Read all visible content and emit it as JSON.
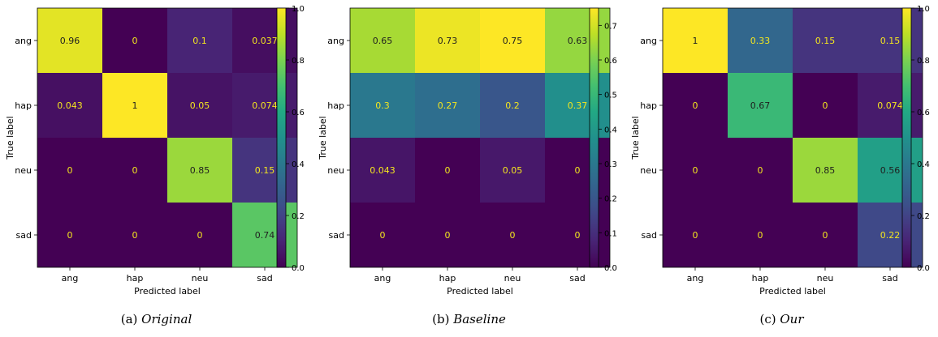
{
  "chart_data": [
    {
      "type": "heatmap",
      "x_categories": [
        "ang",
        "hap",
        "neu",
        "sad"
      ],
      "y_categories": [
        "ang",
        "hap",
        "neu",
        "sad"
      ],
      "values": [
        [
          0.96,
          0,
          0.1,
          0.037
        ],
        [
          0.043,
          1,
          0.05,
          0.074
        ],
        [
          0,
          0,
          0.85,
          0.15
        ],
        [
          0,
          0,
          0,
          0.74
        ]
      ],
      "cell_labels": [
        [
          "0.96",
          "0",
          "0.1",
          "0.037"
        ],
        [
          "0.043",
          "1",
          "0.05",
          "0.074"
        ],
        [
          "0",
          "0",
          "0.85",
          "0.15"
        ],
        [
          "0",
          "0",
          "0",
          "0.74"
        ]
      ],
      "xlabel": "Predicted label",
      "ylabel": "True label",
      "colorbar_range": [
        0,
        1
      ],
      "colorbar_ticks": [
        "0.0",
        "0.2",
        "0.4",
        "0.6",
        "0.8",
        "1.0"
      ],
      "colorbar_tick_values": [
        0,
        0.2,
        0.4,
        0.6,
        0.8,
        1.0
      ],
      "colormap": "viridis",
      "caption_prefix": "(a) ",
      "caption_name": "Original"
    },
    {
      "type": "heatmap",
      "x_categories": [
        "ang",
        "hap",
        "neu",
        "sad"
      ],
      "y_categories": [
        "ang",
        "hap",
        "neu",
        "sad"
      ],
      "values": [
        [
          0.65,
          0.73,
          0.75,
          0.63
        ],
        [
          0.3,
          0.27,
          0.2,
          0.37
        ],
        [
          0.043,
          0,
          0.05,
          0
        ],
        [
          0,
          0,
          0,
          0
        ]
      ],
      "cell_labels": [
        [
          "0.65",
          "0.73",
          "0.75",
          "0.63"
        ],
        [
          "0.3",
          "0.27",
          "0.2",
          "0.37"
        ],
        [
          "0.043",
          "0",
          "0.05",
          "0"
        ],
        [
          "0",
          "0",
          "0",
          "0"
        ]
      ],
      "xlabel": "Predicted label",
      "ylabel": "True label",
      "colorbar_range": [
        0,
        0.75
      ],
      "colorbar_ticks": [
        "0.0",
        "0.1",
        "0.2",
        "0.3",
        "0.4",
        "0.5",
        "0.6",
        "0.7"
      ],
      "colorbar_tick_values": [
        0,
        0.1,
        0.2,
        0.3,
        0.4,
        0.5,
        0.6,
        0.7
      ],
      "colormap": "viridis",
      "caption_prefix": "(b) ",
      "caption_name": "Baseline"
    },
    {
      "type": "heatmap",
      "x_categories": [
        "ang",
        "hap",
        "neu",
        "sad"
      ],
      "y_categories": [
        "ang",
        "hap",
        "neu",
        "sad"
      ],
      "values": [
        [
          1,
          0.33,
          0.15,
          0.15
        ],
        [
          0,
          0.67,
          0,
          0.074
        ],
        [
          0,
          0,
          0.85,
          0.56
        ],
        [
          0,
          0,
          0,
          0.22
        ]
      ],
      "cell_labels": [
        [
          "1",
          "0.33",
          "0.15",
          "0.15"
        ],
        [
          "0",
          "0.67",
          "0",
          "0.074"
        ],
        [
          "0",
          "0",
          "0.85",
          "0.56"
        ],
        [
          "0",
          "0",
          "0",
          "0.22"
        ]
      ],
      "xlabel": "Predicted label",
      "ylabel": "True label",
      "colorbar_range": [
        0,
        1
      ],
      "colorbar_ticks": [
        "0.0",
        "0.2",
        "0.4",
        "0.6",
        "0.8",
        "1.0"
      ],
      "colorbar_tick_values": [
        0,
        0.2,
        0.4,
        0.6,
        0.8,
        1.0
      ],
      "colormap": "viridis",
      "caption_prefix": "(c) ",
      "caption_name": "Our"
    }
  ]
}
